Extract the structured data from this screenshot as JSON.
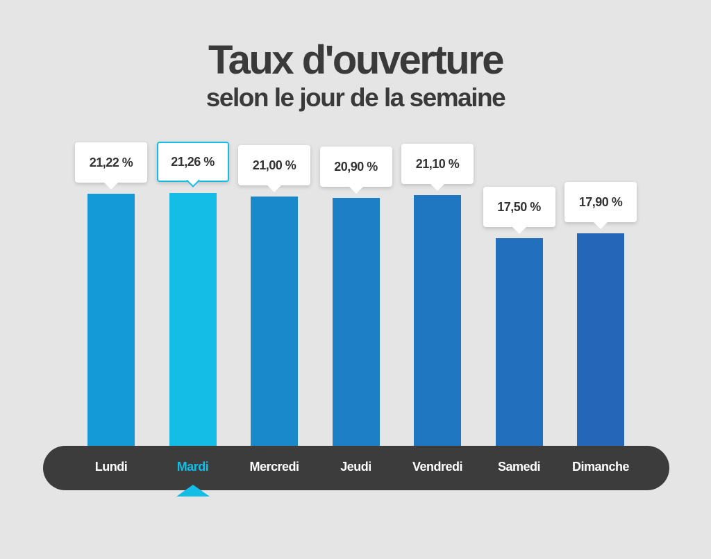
{
  "chart_data": {
    "type": "bar",
    "title": "Taux d'ouverture",
    "subtitle": "selon le jour de la semaine",
    "categories": [
      "Lundi",
      "Mardi",
      "Mercredi",
      "Jeudi",
      "Vendredi",
      "Samedi",
      "Dimanche"
    ],
    "values": [
      21.22,
      21.26,
      21.0,
      20.9,
      21.1,
      17.5,
      17.9
    ],
    "value_labels": [
      "21,22 %",
      "21,26 %",
      "21,00 %",
      "20,90 %",
      "21,10 %",
      "17,50 %",
      "17,90 %"
    ],
    "highlighted_category": "Mardi",
    "xlabel": "",
    "ylabel": "",
    "grid": false,
    "colors": {
      "highlight": "#14bde6",
      "bar_start": "#149ad6",
      "bar_end": "#2566b8",
      "axis_background": "#3c3c3c",
      "title": "#3a3a3a",
      "background": "#e5e5e5"
    }
  }
}
